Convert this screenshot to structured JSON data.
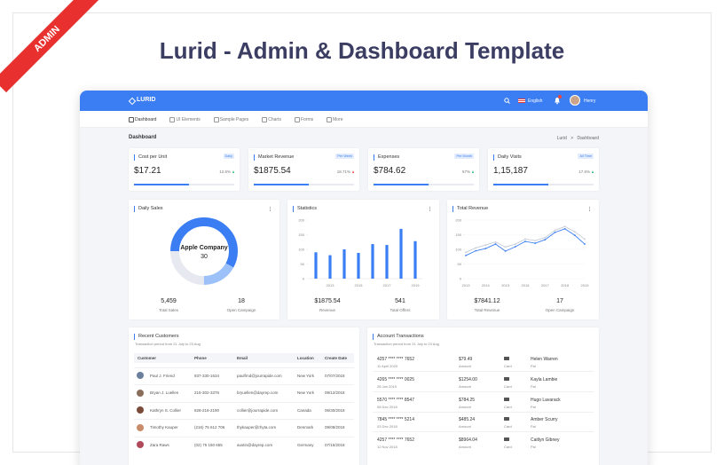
{
  "banner": {
    "title": "Lurid - Admin & Dashboard Template",
    "ribbon": "ADMIN"
  },
  "header": {
    "logo": "LURID",
    "language": "English",
    "user": "Henry"
  },
  "nav": [
    "Dashboard",
    "UI Elements",
    "Sample Pages",
    "Charts",
    "Forms",
    "More"
  ],
  "breadcrumb": {
    "title": "Dashboard",
    "root": "Lurid",
    "separator": ">",
    "current": "Dashboard"
  },
  "stats": [
    {
      "title": "Cost per Unit",
      "badge": "Daily",
      "value": "$17.21",
      "change": "12.5%",
      "progress": 55
    },
    {
      "title": "Market Revenue",
      "badge": "Per Week",
      "value": "$1875.54",
      "change": "18.71%",
      "progress": 55
    },
    {
      "title": "Expenses",
      "badge": "Per Month",
      "value": "$784.62",
      "change": "57%",
      "progress": 55
    },
    {
      "title": "Daily Visits",
      "badge": "All Time",
      "value": "1,15,187",
      "change": "17.6%",
      "progress": 55
    }
  ],
  "daily_sales": {
    "title": "Daily Sales",
    "chart": {
      "type": "pie",
      "center_label": "Apple Company",
      "center_value": 30,
      "values": [
        58,
        17,
        25
      ],
      "colors": [
        "#3b7ef3",
        "#9cc1f8",
        "#e6e9ef"
      ]
    },
    "footer": [
      {
        "value": "5,459",
        "label": "Total Sales"
      },
      {
        "value": "18",
        "label": "Open Campaign"
      }
    ]
  },
  "statistics": {
    "title": "Statistics",
    "chart": {
      "type": "bar",
      "categories": [
        null,
        "2013",
        null,
        "2015",
        null,
        "2017",
        null,
        "2019"
      ],
      "values": [
        90,
        80,
        100,
        88,
        118,
        115,
        170,
        128
      ],
      "color": "#3b7ef3",
      "ylim": [
        0,
        200
      ],
      "yticks": [
        0,
        50,
        100,
        150,
        200
      ]
    },
    "footer": [
      {
        "value": "$1875.54",
        "label": "Revenue"
      },
      {
        "value": "541",
        "label": "Total Offers"
      }
    ]
  },
  "total_revenue": {
    "title": "Total Revenue",
    "chart": {
      "type": "line",
      "x": [
        2013,
        2013.5,
        2014,
        2014.5,
        2015,
        2015.5,
        2016,
        2016.5,
        2017,
        2017.5,
        2018,
        2018.5,
        2019
      ],
      "series": [
        {
          "color": "#c7ccd6",
          "values": [
            90,
            105,
            115,
            125,
            108,
            118,
            135,
            130,
            140,
            165,
            178,
            160,
            135
          ]
        },
        {
          "color": "#3b7ef3",
          "values": [
            79,
            95,
            103,
            118,
            94,
            109,
            127,
            121,
            133,
            158,
            170,
            148,
            118
          ]
        }
      ],
      "xlim": [
        2013,
        2019
      ],
      "xticks": [
        2013,
        2014,
        2015,
        2016,
        2017,
        2018,
        2019
      ],
      "ylim": [
        0,
        200
      ],
      "yticks": [
        0,
        50,
        100,
        150,
        200
      ]
    },
    "footer": [
      {
        "value": "$7841.12",
        "label": "Total Revenue"
      },
      {
        "value": "17",
        "label": "Open Campaign"
      }
    ]
  },
  "customers": {
    "title": "Recent Customers",
    "subtitle": "Transaction period from 21 July to 23 Aug",
    "columns": [
      "Customer",
      "Phone",
      "Email",
      "Location",
      "Create Date"
    ],
    "rows": [
      [
        "Paul J. Friend",
        "937-330-1634",
        "paulfrnd@jourrapide.com",
        "New York",
        "07/07/2018"
      ],
      [
        "Bryan J. Luellen",
        "215-302-3376",
        "bryuellen@dayrep.com",
        "New York",
        "09/12/2018"
      ],
      [
        "Kathryn S. Collier",
        "828-216-2190",
        "collier@jourrapide.com",
        "Canada",
        "06/30/2018"
      ],
      [
        "Timothy Kauper",
        "(216) 75 612 706",
        "thykauper@rhyta.com",
        "Denmark",
        "09/08/2018"
      ],
      [
        "Zara Raws",
        "(02) 75 150 655",
        "austin@dayrep.com",
        "Germany",
        "07/15/2018"
      ]
    ]
  },
  "transactions": {
    "title": "Account Transactions",
    "subtitle": "Transaction period from 21 July to 23 Aug",
    "rows": [
      {
        "card": "4257 **** **** 7652",
        "date": "11 April 2020",
        "amount": "$79.49",
        "amount_label": "Amount",
        "type": "Card",
        "name": "Helen Warren",
        "method": "Pal"
      },
      {
        "card": "4265 **** **** 0025",
        "date": "28 Jan 2019",
        "amount": "$1254.00",
        "amount_label": "Amount",
        "type": "Card",
        "name": "Kayla Lambie",
        "method": "Pal"
      },
      {
        "card": "5570 **** **** 8547",
        "date": "08 Dec 2018",
        "amount": "$784.25",
        "amount_label": "Amount",
        "type": "Card",
        "name": "Hugo Lavarack",
        "method": "Pal"
      },
      {
        "card": "7845 **** **** 5214",
        "date": "03 Dec 2018",
        "amount": "$485.24",
        "amount_label": "Amount",
        "type": "Card",
        "name": "Amber Scurry",
        "method": "Pal"
      },
      {
        "card": "4257 **** **** 7652",
        "date": "12 Nov 2018",
        "amount": "$8964.04",
        "amount_label": "Amount",
        "type": "Card",
        "name": "Caitlyn Gibney",
        "method": "Pal"
      }
    ]
  }
}
